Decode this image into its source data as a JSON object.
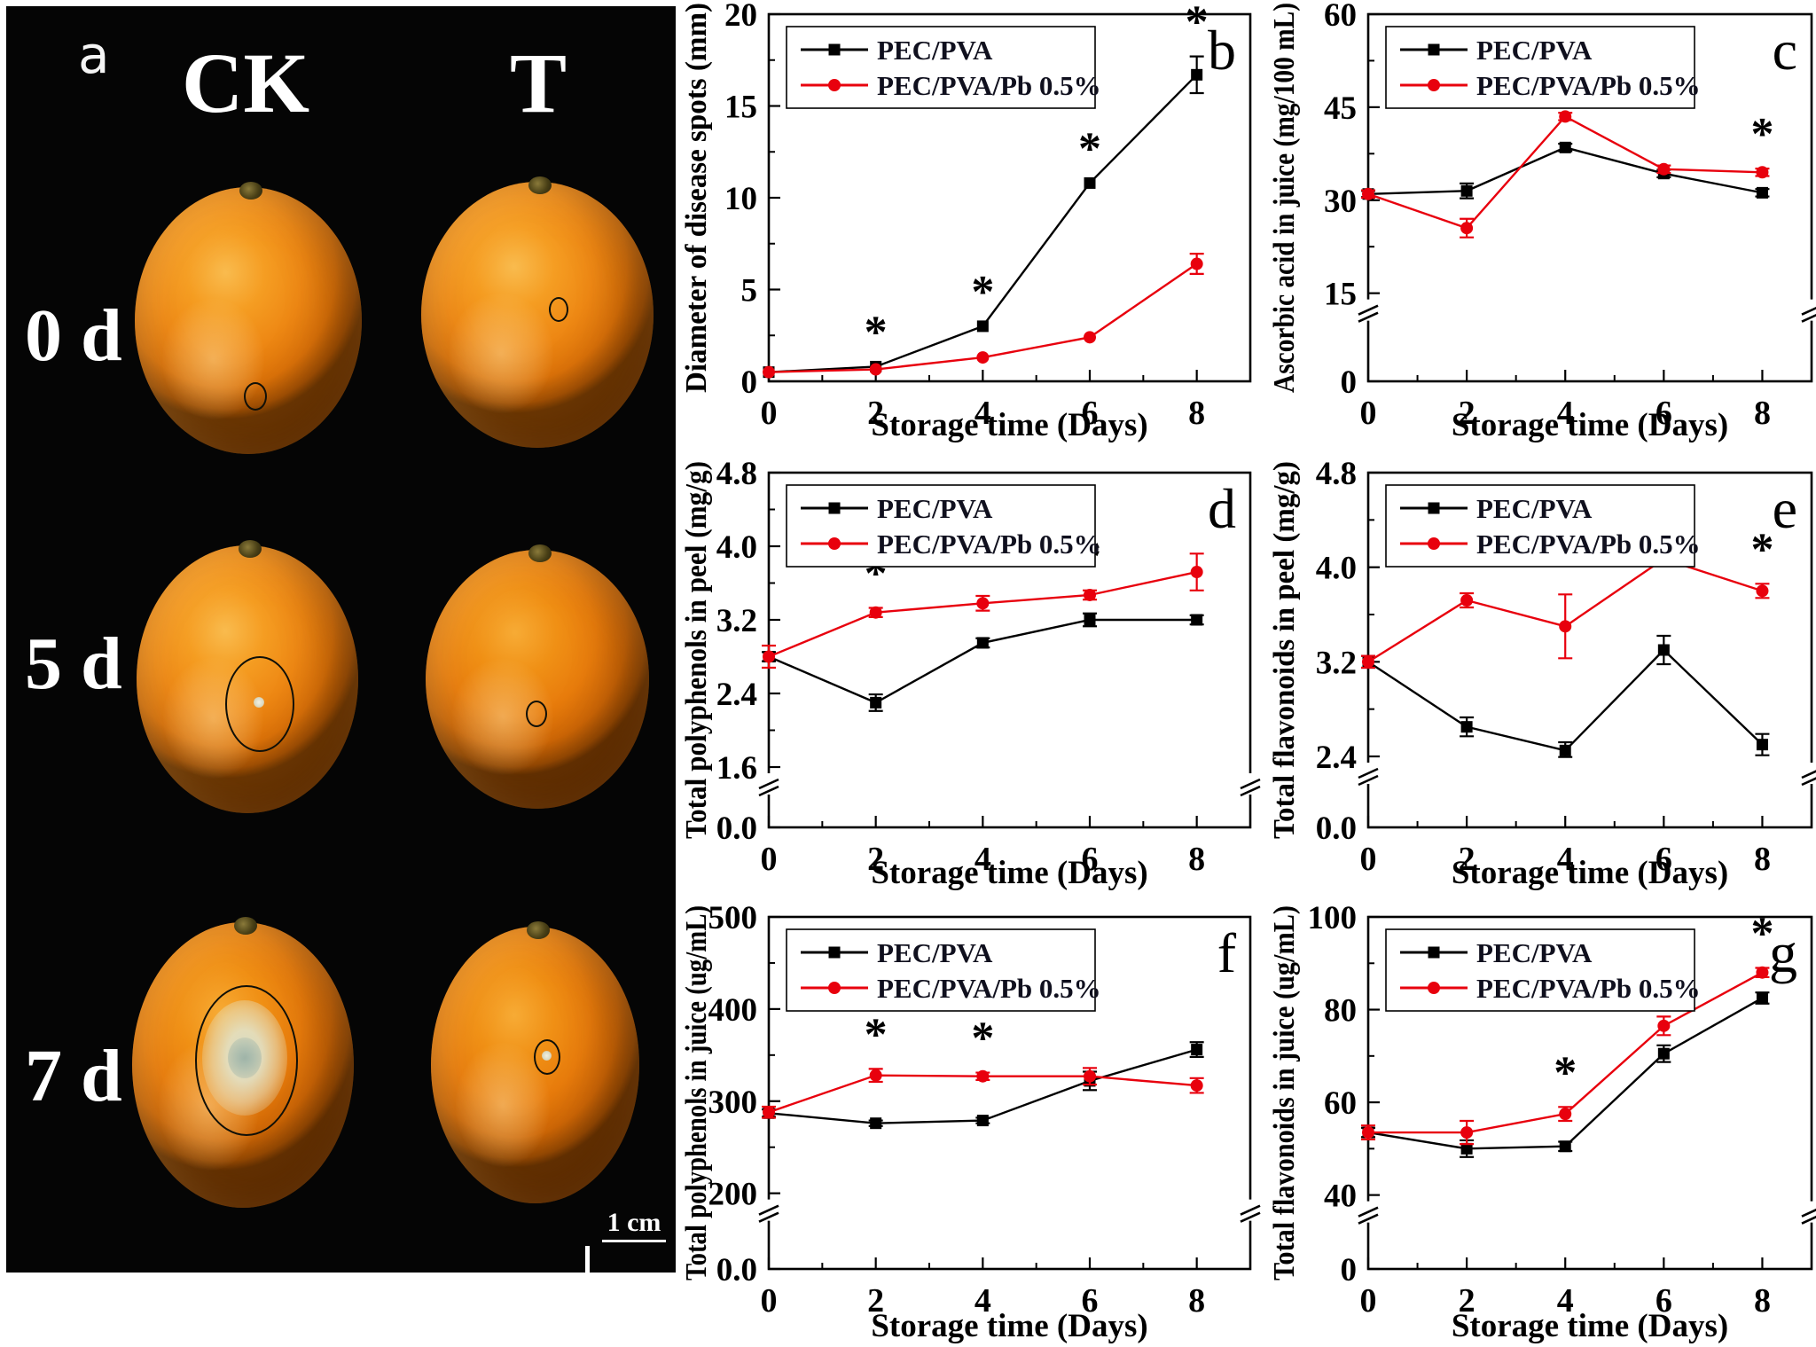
{
  "panel_a": {
    "label": "a",
    "columns": [
      "CK",
      "T"
    ],
    "rows": [
      "0 d",
      "5 d",
      "7 d"
    ],
    "scale_bar_label": "1 cm"
  },
  "charts_common": {
    "xlabel": "Storage time (Days)",
    "xticks": [
      0,
      2,
      4,
      6,
      8
    ],
    "xminor": [
      1,
      3,
      5,
      7,
      9
    ],
    "xlim": [
      0,
      9.0
    ],
    "legend": [
      "PEC/PVA",
      "PEC/PVA/Pb 0.5%"
    ],
    "series_colors": [
      "#000000",
      "#e8000d"
    ],
    "series_markers": [
      "square",
      "circle"
    ]
  },
  "chart_data": [
    {
      "type": "line",
      "panel_letter": "b",
      "ylabel": "Diameter of disease spots (mm)",
      "yticks": [
        0,
        5,
        10,
        15,
        20
      ],
      "ytick_labels": [
        "0",
        "5",
        "10",
        "15",
        "20"
      ],
      "axis_break": false,
      "break_frac": 0,
      "series": [
        {
          "name": "PEC/PVA",
          "values": [
            0.5,
            0.8,
            3.0,
            10.8,
            16.7
          ],
          "errors": [
            0,
            0,
            0,
            0,
            1.0
          ]
        },
        {
          "name": "PEC/PVA/Pb 0.5%",
          "values": [
            0.5,
            0.65,
            1.3,
            2.4,
            6.4
          ],
          "errors": [
            0,
            0,
            0,
            0,
            0.55
          ]
        }
      ],
      "asterisk_days": [
        2,
        4,
        6,
        8
      ]
    },
    {
      "type": "line",
      "panel_letter": "c",
      "ylabel": "Ascorbic acid in juice (mg/100 mL)",
      "yticks": [
        0,
        15,
        30,
        45,
        60
      ],
      "ytick_labels": [
        "0",
        "15",
        "30",
        "45",
        "60"
      ],
      "axis_break": true,
      "break_frac": 0.24,
      "series": [
        {
          "name": "PEC/PVA",
          "values": [
            31,
            31.5,
            38.5,
            34.3,
            31.2
          ],
          "errors": [
            0.5,
            1.2,
            0.6,
            0.6,
            0.6
          ]
        },
        {
          "name": "PEC/PVA/Pb 0.5%",
          "values": [
            31,
            25.5,
            43.5,
            35,
            34.5
          ],
          "errors": [
            0.6,
            1.5,
            0.6,
            0.6,
            0.6
          ]
        }
      ],
      "asterisk_days": [
        4,
        8
      ]
    },
    {
      "type": "line",
      "panel_letter": "d",
      "ylabel": "Total polyphenols in peel (mg/g)",
      "yticks": [
        0.0,
        1.6,
        2.4,
        3.2,
        4.0,
        4.8
      ],
      "ytick_labels": [
        "0.0",
        "1.6",
        "2.4",
        "3.2",
        "4.0",
        "4.8"
      ],
      "axis_break": true,
      "break_frac": 0.17,
      "series": [
        {
          "name": "PEC/PVA",
          "values": [
            2.8,
            2.3,
            2.95,
            3.2,
            3.2
          ],
          "errors": [
            0.05,
            0.09,
            0.05,
            0.07,
            0.05
          ]
        },
        {
          "name": "PEC/PVA/Pb 0.5%",
          "values": [
            2.8,
            3.28,
            3.38,
            3.47,
            3.72
          ],
          "errors": [
            0.12,
            0.05,
            0.08,
            0.05,
            0.2
          ]
        }
      ],
      "asterisk_days": [
        2,
        4,
        6
      ]
    },
    {
      "type": "line",
      "panel_letter": "e",
      "ylabel": "Total flavonoids in peel (mg/g)",
      "yticks": [
        0.0,
        2.4,
        3.2,
        4.0,
        4.8
      ],
      "ytick_labels": [
        "0.0",
        "2.4",
        "3.2",
        "4.0",
        "4.8"
      ],
      "axis_break": true,
      "break_frac": 0.2,
      "series": [
        {
          "name": "PEC/PVA",
          "values": [
            3.2,
            2.65,
            2.45,
            3.3,
            2.5
          ],
          "errors": [
            0.05,
            0.08,
            0.07,
            0.12,
            0.09
          ]
        },
        {
          "name": "PEC/PVA/Pb 0.5%",
          "values": [
            3.2,
            3.72,
            3.5,
            4.07,
            3.8
          ],
          "errors": [
            0.05,
            0.06,
            0.27,
            0.05,
            0.06
          ]
        }
      ],
      "asterisk_days": [
        2,
        4,
        6,
        8
      ]
    },
    {
      "type": "line",
      "panel_letter": "f",
      "ylabel": "Total polyphenols in juice (ug/mL)",
      "yticks": [
        0,
        200,
        300,
        400,
        500
      ],
      "ytick_labels": [
        "0.0",
        "200",
        "300",
        "400",
        "500"
      ],
      "axis_break": true,
      "break_frac": 0.215,
      "series": [
        {
          "name": "PEC/PVA",
          "values": [
            287,
            276,
            279,
            322,
            356
          ],
          "errors": [
            4,
            3,
            3,
            10,
            8
          ]
        },
        {
          "name": "PEC/PVA/Pb 0.5%",
          "values": [
            288,
            328,
            327,
            327,
            317
          ],
          "errors": [
            6,
            7,
            4,
            9,
            8
          ]
        }
      ],
      "asterisk_days": [
        2,
        4
      ]
    },
    {
      "type": "line",
      "panel_letter": "g",
      "ylabel": "Total flavonoids in juice (ug/mL)",
      "yticks": [
        0,
        40,
        60,
        80,
        100
      ],
      "ytick_labels": [
        "0",
        "40",
        "60",
        "80",
        "100"
      ],
      "axis_break": true,
      "break_frac": 0.21,
      "series": [
        {
          "name": "PEC/PVA",
          "values": [
            53.5,
            50,
            50.5,
            70.5,
            82.5
          ],
          "errors": [
            1,
            1.8,
            1,
            1.8,
            1.2
          ]
        },
        {
          "name": "PEC/PVA/Pb 0.5%",
          "values": [
            53.5,
            53.5,
            57.5,
            76.5,
            88
          ],
          "errors": [
            1.5,
            2.5,
            1.5,
            2,
            1
          ]
        }
      ],
      "asterisk_days": [
        4,
        8
      ]
    }
  ]
}
